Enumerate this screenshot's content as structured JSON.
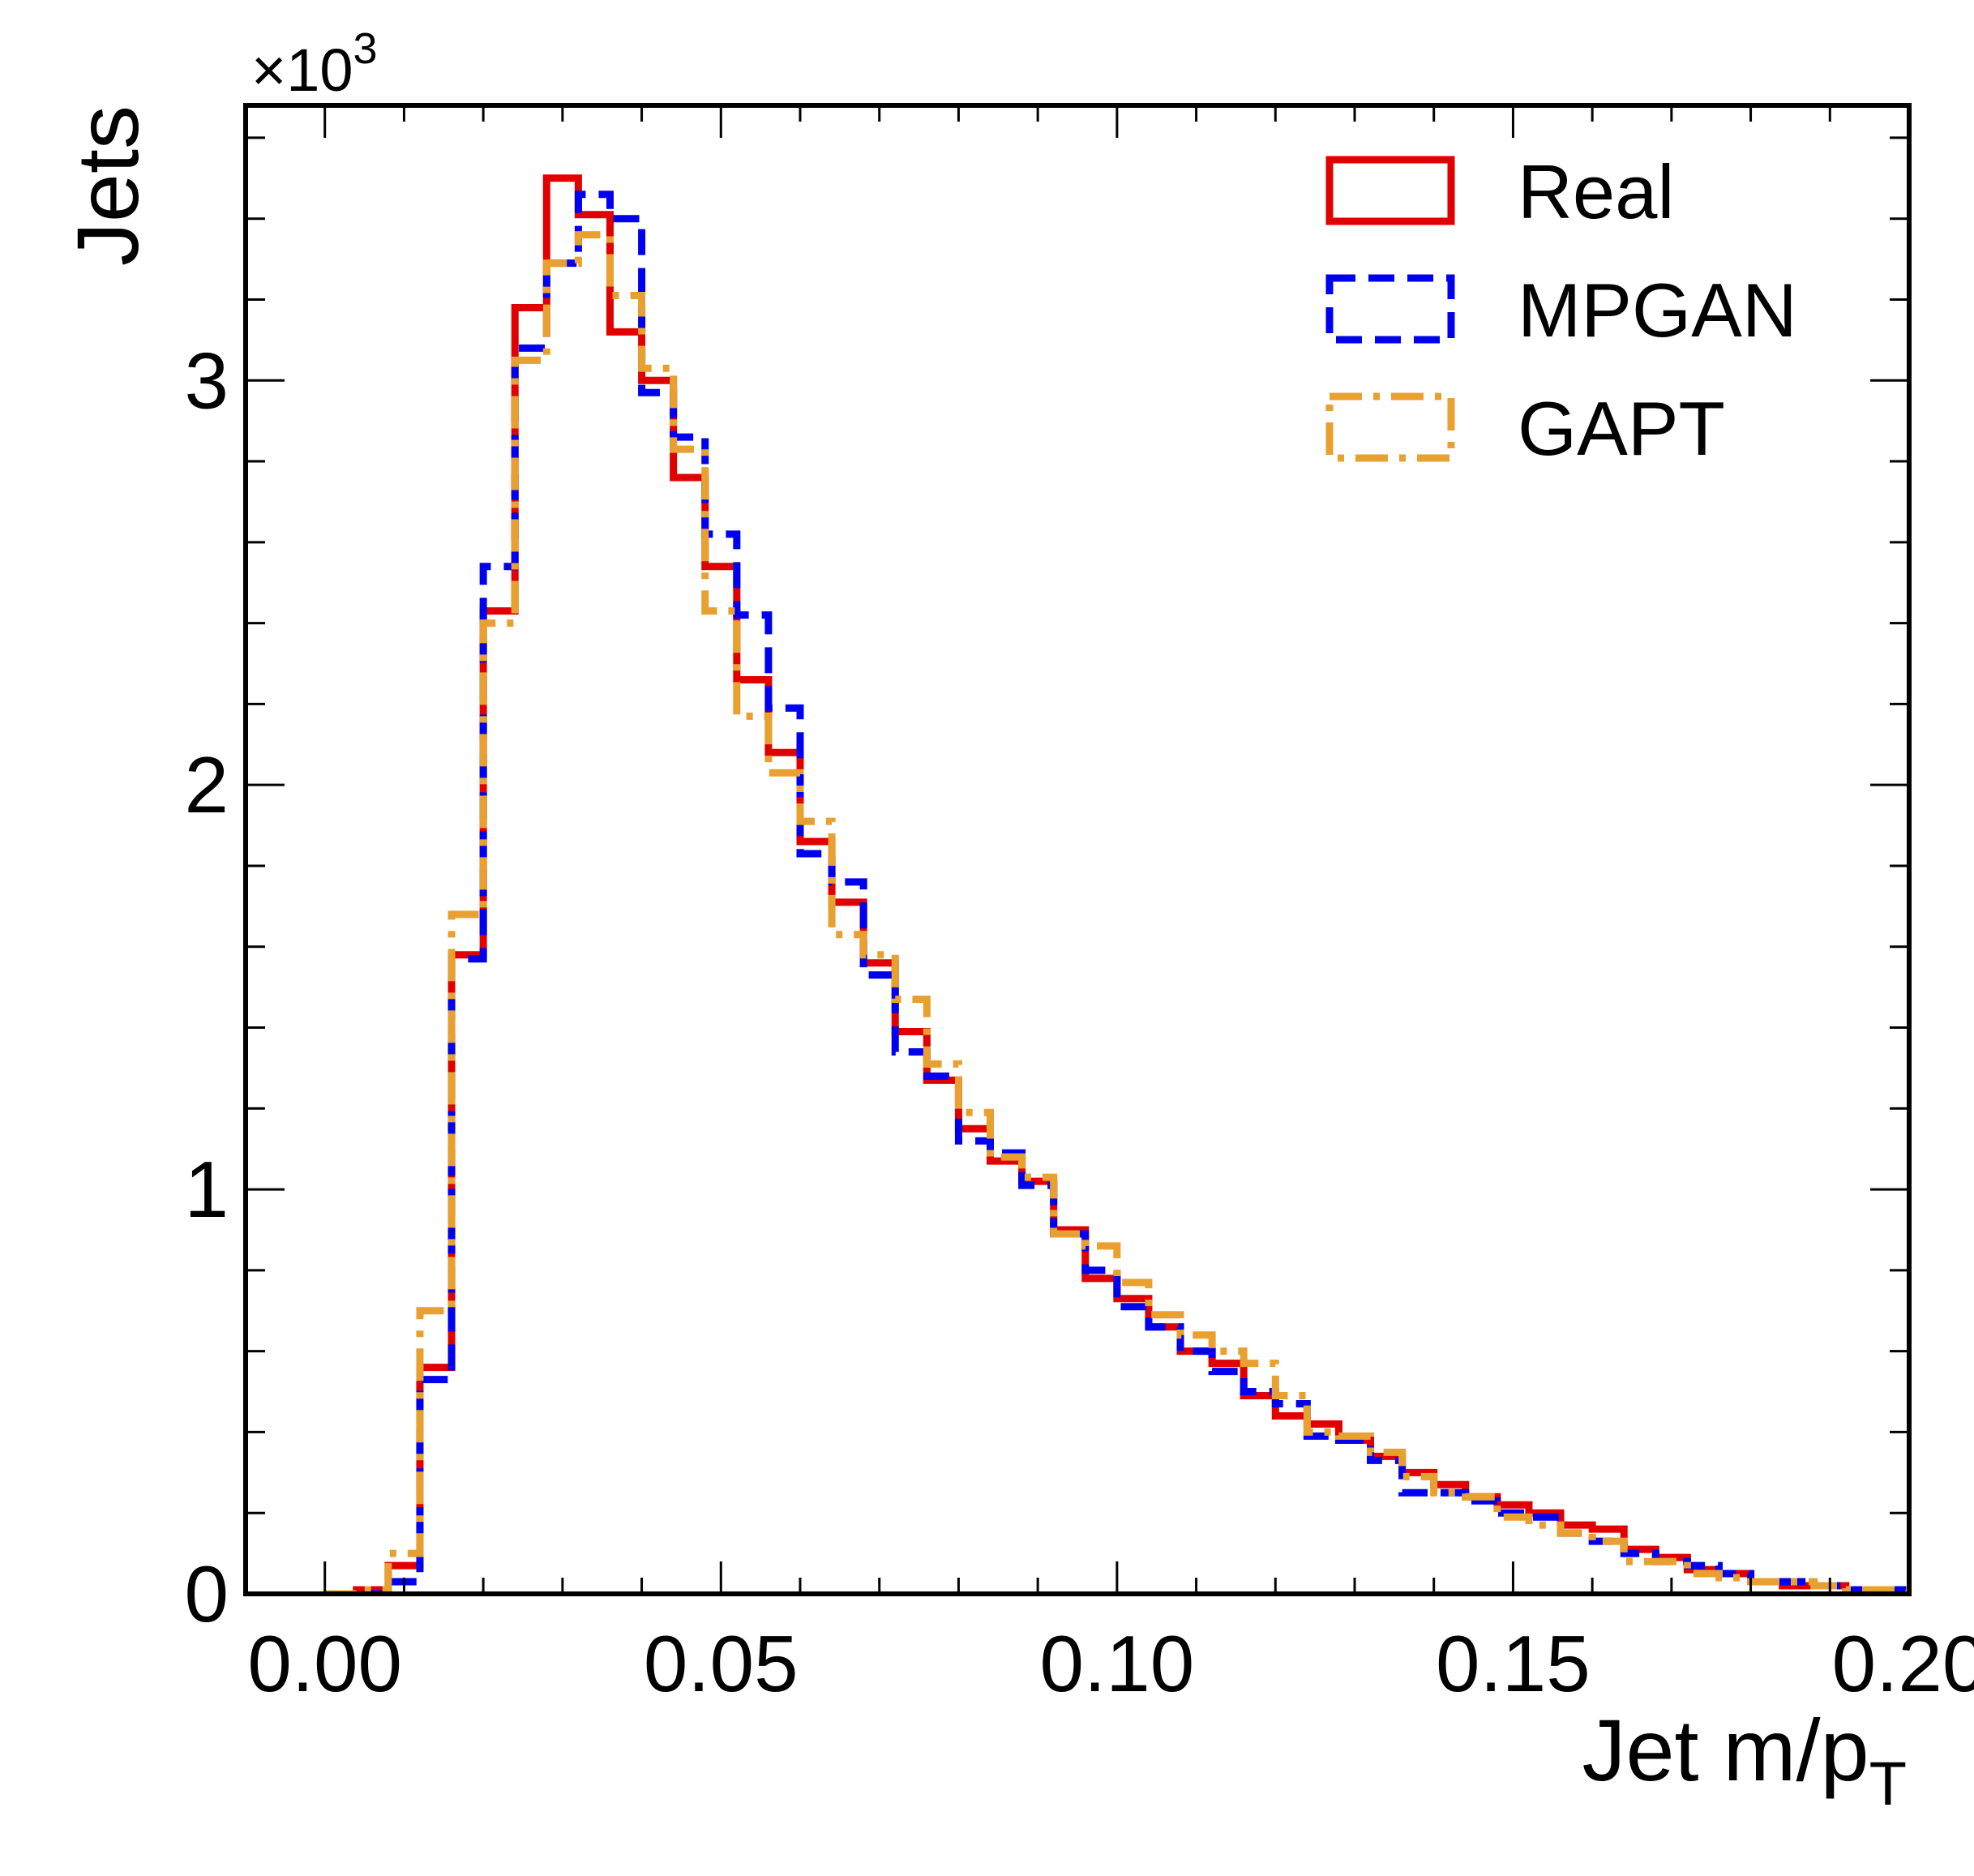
{
  "chart_data": {
    "type": "histogram",
    "xlabel_main": "Jet m/p",
    "xlabel_sub": "T",
    "ylabel": "Jets",
    "y_multiplier_prefix": "×10",
    "y_multiplier_exp": "3",
    "xlim": [
      -0.01,
      0.2
    ],
    "ylim": [
      0,
      3.68
    ],
    "x_ticks": [
      0.0,
      0.05,
      0.1,
      0.15,
      0.2
    ],
    "x_tick_labels": [
      "0.00",
      "0.05",
      "0.10",
      "0.15",
      "0.20"
    ],
    "y_ticks": [
      0,
      1,
      2,
      3
    ],
    "y_tick_labels": [
      "0",
      "1",
      "2",
      "3"
    ],
    "legend_position": "top-right",
    "bin_edges": [
      0,
      0.004,
      0.008,
      0.012,
      0.016,
      0.02,
      0.024,
      0.028,
      0.032,
      0.036,
      0.04,
      0.044,
      0.048,
      0.052,
      0.056,
      0.06,
      0.064,
      0.068,
      0.072,
      0.076,
      0.08,
      0.084,
      0.088,
      0.092,
      0.096,
      0.1,
      0.104,
      0.108,
      0.112,
      0.116,
      0.12,
      0.124,
      0.128,
      0.132,
      0.136,
      0.14,
      0.144,
      0.148,
      0.152,
      0.156,
      0.16,
      0.164,
      0.168,
      0.172,
      0.176,
      0.18,
      0.184,
      0.188,
      0.192,
      0.196,
      0.2
    ],
    "series": [
      {
        "name": "Real",
        "color": "#e00000",
        "style": "solid",
        "values": [
          0.0,
          0.01,
          0.07,
          0.56,
          1.58,
          2.43,
          3.18,
          3.5,
          3.41,
          3.12,
          3.0,
          2.76,
          2.54,
          2.26,
          2.08,
          1.86,
          1.71,
          1.56,
          1.39,
          1.27,
          1.15,
          1.07,
          1.02,
          0.9,
          0.78,
          0.73,
          0.66,
          0.6,
          0.57,
          0.49,
          0.44,
          0.42,
          0.38,
          0.34,
          0.3,
          0.27,
          0.24,
          0.22,
          0.2,
          0.17,
          0.16,
          0.11,
          0.09,
          0.06,
          0.05,
          0.03,
          0.02,
          0.02,
          0.01,
          0.01
        ]
      },
      {
        "name": "MPGAN",
        "color": "#0000ee",
        "style": "dashed",
        "values": [
          0.0,
          0.0,
          0.03,
          0.53,
          1.57,
          2.54,
          3.08,
          3.29,
          3.46,
          3.4,
          2.97,
          2.86,
          2.62,
          2.42,
          2.19,
          1.83,
          1.76,
          1.53,
          1.34,
          1.28,
          1.12,
          1.09,
          1.01,
          0.89,
          0.8,
          0.71,
          0.66,
          0.6,
          0.55,
          0.5,
          0.47,
          0.39,
          0.38,
          0.33,
          0.25,
          0.25,
          0.23,
          0.2,
          0.19,
          0.15,
          0.13,
          0.1,
          0.08,
          0.07,
          0.05,
          0.03,
          0.03,
          0.02,
          0.01,
          0.01
        ]
      },
      {
        "name": "GAPT",
        "color": "#e8a030",
        "style": "dashdot",
        "values": [
          0.0,
          0.01,
          0.1,
          0.7,
          1.68,
          2.4,
          3.05,
          3.29,
          3.36,
          3.21,
          3.03,
          2.83,
          2.43,
          2.17,
          2.03,
          1.91,
          1.63,
          1.58,
          1.47,
          1.31,
          1.19,
          1.08,
          1.03,
          0.89,
          0.86,
          0.77,
          0.69,
          0.64,
          0.6,
          0.57,
          0.49,
          0.4,
          0.39,
          0.35,
          0.29,
          0.25,
          0.24,
          0.19,
          0.17,
          0.15,
          0.13,
          0.08,
          0.08,
          0.05,
          0.04,
          0.03,
          0.03,
          0.02,
          0.01,
          0.01
        ]
      }
    ]
  }
}
